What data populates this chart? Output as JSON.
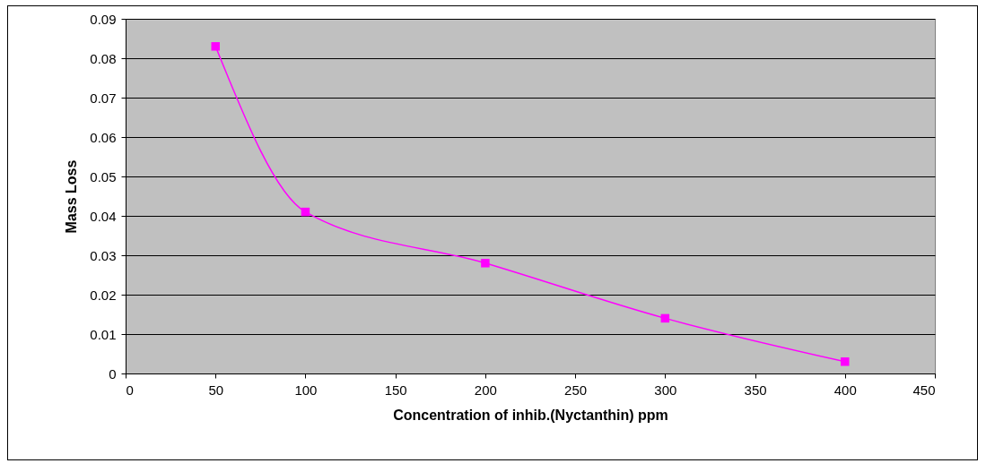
{
  "chart_data": {
    "type": "line",
    "xlabel": "Concentration of inhib.(Nyctanthin) ppm",
    "ylabel": "Mass Loss",
    "x": [
      50,
      100,
      200,
      300,
      400
    ],
    "series": [
      {
        "color": "#ff00ff",
        "values": [
          0.083,
          0.041,
          0.028,
          0.014,
          0.003
        ]
      }
    ],
    "xlim": [
      0,
      450
    ],
    "xticks": [
      0,
      50,
      100,
      150,
      200,
      250,
      300,
      350,
      400,
      450
    ],
    "ylim": [
      0,
      0.09
    ],
    "yticks": [
      0,
      0.01,
      0.02,
      0.03,
      0.04,
      0.05,
      0.06,
      0.07,
      0.08,
      0.09
    ],
    "grid": "y",
    "marker": "square"
  }
}
